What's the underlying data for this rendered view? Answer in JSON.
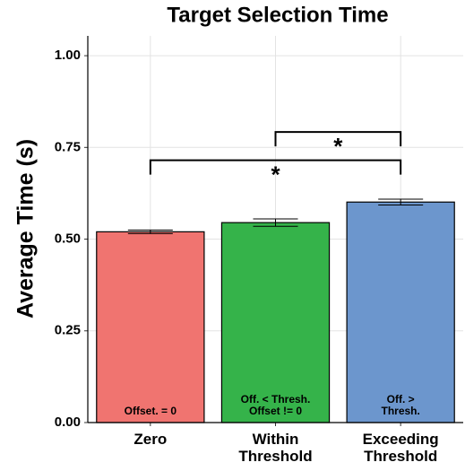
{
  "chart_data": {
    "type": "bar",
    "title": "Target Selection Time",
    "y_label": "Average Time (s)",
    "categories": [
      "Zero",
      "Within\nThreshold",
      "Exceeding\nThreshold"
    ],
    "values": [
      0.52,
      0.545,
      0.601
    ],
    "errors": [
      0.005,
      0.01,
      0.008
    ],
    "colors": [
      "#f07470",
      "#35b34a",
      "#6c96cd"
    ],
    "bar_labels": [
      "Offset. = 0",
      "Off. < Thresh.\nOffset != 0",
      "Off. > Thresh."
    ],
    "brackets": [
      {
        "between": [
          0,
          2
        ],
        "y": 0.715,
        "label": "*"
      },
      {
        "between": [
          1,
          2
        ],
        "y": 0.792,
        "label": "*"
      }
    ],
    "ylim": [
      0,
      1.054
    ],
    "yticks": [
      {
        "value": 0,
        "label": "0.00"
      },
      {
        "value": 0.25,
        "label": "0.25"
      },
      {
        "value": 0.5,
        "label": "0.50"
      },
      {
        "value": 0.75,
        "label": "0.75"
      },
      {
        "value": 1,
        "label": "1.00"
      }
    ],
    "grid": true
  }
}
